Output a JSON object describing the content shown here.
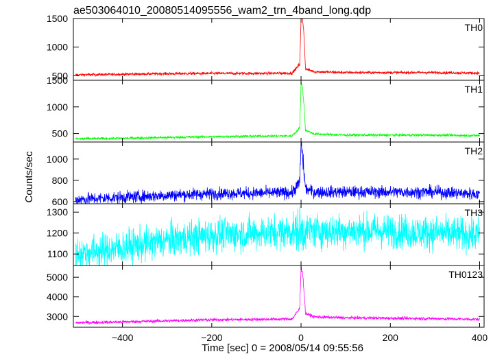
{
  "chart_data": {
    "type": "line",
    "title": "ae503064010_20080514095556_wam2_trn_4band_long.qdp",
    "xlabel": "Time [sec] 0 = 2008/05/14 09:55:56",
    "ylabel": "Counts/sec",
    "xlim": [
      -510,
      410
    ],
    "x_ticks": [
      -400,
      -200,
      0,
      200,
      400
    ],
    "x_tick_labels": [
      "−400",
      "−200",
      "0",
      "200",
      "400"
    ],
    "grid": false,
    "panels": [
      {
        "name": "TH0",
        "color": "#ff0000",
        "ylim": [
          420,
          1500
        ],
        "y_ticks": [
          500,
          1000,
          1500
        ],
        "y_tick_labels": [
          "500",
          "1000",
          "1500"
        ],
        "series": [
          {
            "x": -505,
            "y": 515
          },
          {
            "x": -400,
            "y": 525
          },
          {
            "x": -300,
            "y": 535
          },
          {
            "x": -200,
            "y": 540
          },
          {
            "x": -100,
            "y": 540
          },
          {
            "x": -20,
            "y": 545
          },
          {
            "x": -3,
            "y": 700
          },
          {
            "x": 0,
            "y": 1500
          },
          {
            "x": 3,
            "y": 1500
          },
          {
            "x": 6,
            "y": 1300
          },
          {
            "x": 10,
            "y": 620
          },
          {
            "x": 30,
            "y": 570
          },
          {
            "x": 100,
            "y": 555
          },
          {
            "x": 200,
            "y": 555
          },
          {
            "x": 300,
            "y": 555
          },
          {
            "x": 400,
            "y": 545
          }
        ],
        "noise": 12
      },
      {
        "name": "TH1",
        "color": "#00ff00",
        "ylim": [
          340,
          1500
        ],
        "y_ticks": [
          500,
          1000,
          1500
        ],
        "y_tick_labels": [
          "500",
          "1000",
          "1500"
        ],
        "series": [
          {
            "x": -505,
            "y": 400
          },
          {
            "x": -400,
            "y": 410
          },
          {
            "x": -300,
            "y": 425
          },
          {
            "x": -200,
            "y": 440
          },
          {
            "x": -100,
            "y": 450
          },
          {
            "x": -20,
            "y": 455
          },
          {
            "x": -3,
            "y": 600
          },
          {
            "x": 0,
            "y": 1450
          },
          {
            "x": 3,
            "y": 1380
          },
          {
            "x": 6,
            "y": 1100
          },
          {
            "x": 10,
            "y": 560
          },
          {
            "x": 30,
            "y": 490
          },
          {
            "x": 100,
            "y": 470
          },
          {
            "x": 200,
            "y": 470
          },
          {
            "x": 300,
            "y": 470
          },
          {
            "x": 400,
            "y": 460
          }
        ],
        "noise": 12
      },
      {
        "name": "TH2",
        "color": "#0000ff",
        "ylim": [
          580,
          1160
        ],
        "y_ticks": [
          600,
          800,
          1000
        ],
        "y_tick_labels": [
          "600",
          "800",
          "1000"
        ],
        "series": [
          {
            "x": -505,
            "y": 620
          },
          {
            "x": -400,
            "y": 640
          },
          {
            "x": -300,
            "y": 660
          },
          {
            "x": -200,
            "y": 675
          },
          {
            "x": -100,
            "y": 680
          },
          {
            "x": -20,
            "y": 685
          },
          {
            "x": -3,
            "y": 780
          },
          {
            "x": 0,
            "y": 1150
          },
          {
            "x": 3,
            "y": 1050
          },
          {
            "x": 6,
            "y": 900
          },
          {
            "x": 10,
            "y": 720
          },
          {
            "x": 30,
            "y": 690
          },
          {
            "x": 100,
            "y": 690
          },
          {
            "x": 200,
            "y": 690
          },
          {
            "x": 300,
            "y": 690
          },
          {
            "x": 400,
            "y": 670
          }
        ],
        "noise": 28
      },
      {
        "name": "TH3",
        "color": "#00ffff",
        "ylim": [
          1045,
          1340
        ],
        "y_ticks": [
          1100,
          1200,
          1300
        ],
        "y_tick_labels": [
          "1100",
          "1200",
          "1300"
        ],
        "series": [
          {
            "x": -505,
            "y": 1100
          },
          {
            "x": -400,
            "y": 1130
          },
          {
            "x": -300,
            "y": 1165
          },
          {
            "x": -200,
            "y": 1190
          },
          {
            "x": -100,
            "y": 1200
          },
          {
            "x": 0,
            "y": 1210
          },
          {
            "x": 100,
            "y": 1210
          },
          {
            "x": 200,
            "y": 1210
          },
          {
            "x": 300,
            "y": 1200
          },
          {
            "x": 400,
            "y": 1190
          }
        ],
        "noise": 40
      },
      {
        "name": "TH0123",
        "color": "#ff00ff",
        "ylim": [
          2450,
          5600
        ],
        "y_ticks": [
          3000,
          4000,
          5000
        ],
        "y_tick_labels": [
          "3000",
          "4000",
          "5000"
        ],
        "series": [
          {
            "x": -505,
            "y": 2680
          },
          {
            "x": -400,
            "y": 2720
          },
          {
            "x": -300,
            "y": 2780
          },
          {
            "x": -200,
            "y": 2830
          },
          {
            "x": -100,
            "y": 2850
          },
          {
            "x": -20,
            "y": 2870
          },
          {
            "x": -3,
            "y": 3400
          },
          {
            "x": 0,
            "y": 5500
          },
          {
            "x": 3,
            "y": 5300
          },
          {
            "x": 6,
            "y": 4500
          },
          {
            "x": 10,
            "y": 3150
          },
          {
            "x": 30,
            "y": 2980
          },
          {
            "x": 100,
            "y": 2930
          },
          {
            "x": 200,
            "y": 2910
          },
          {
            "x": 300,
            "y": 2890
          },
          {
            "x": 400,
            "y": 2850
          }
        ],
        "noise": 40
      }
    ]
  }
}
